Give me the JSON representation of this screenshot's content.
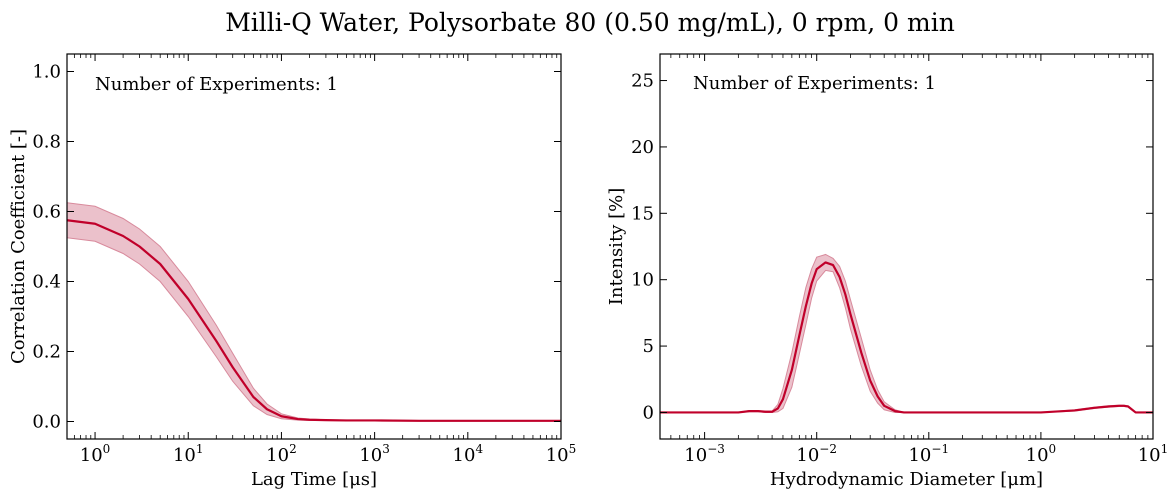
{
  "figure": {
    "title": "Milli-Q Water, Polysorbate 80 (0.50 mg/mL), 0 rpm, 0 min"
  },
  "colors": {
    "line": "#c0002a",
    "band": "#e8b6c2",
    "band_edge": "#d88a9c"
  },
  "chart_data": [
    {
      "type": "line",
      "xlabel": "Lag Time [μs]",
      "ylabel": "Correlation Coefficient [-]",
      "annotation": "Number of Experiments: 1",
      "xscale": "log",
      "xlim": [
        0.5,
        100000
      ],
      "ylim": [
        -0.05,
        1.05
      ],
      "xticks": [
        {
          "value": 1,
          "label": "10^0"
        },
        {
          "value": 10,
          "label": "10^1"
        },
        {
          "value": 100,
          "label": "10^2"
        },
        {
          "value": 1000,
          "label": "10^3"
        },
        {
          "value": 10000,
          "label": "10^4"
        },
        {
          "value": 100000,
          "label": "10^5"
        }
      ],
      "yticks": [
        {
          "value": 0.0,
          "label": "0.0"
        },
        {
          "value": 0.2,
          "label": "0.2"
        },
        {
          "value": 0.4,
          "label": "0.4"
        },
        {
          "value": 0.6,
          "label": "0.6"
        },
        {
          "value": 0.8,
          "label": "0.8"
        },
        {
          "value": 1.0,
          "label": "1.0"
        }
      ],
      "x": [
        0.5,
        1,
        2,
        3,
        5,
        10,
        20,
        30,
        50,
        70,
        100,
        150,
        200,
        300,
        500,
        1000,
        3000,
        10000,
        30000,
        100000
      ],
      "y": [
        0.575,
        0.565,
        0.53,
        0.5,
        0.45,
        0.35,
        0.23,
        0.155,
        0.07,
        0.035,
        0.015,
        0.007,
        0.005,
        0.004,
        0.003,
        0.003,
        0.002,
        0.002,
        0.002,
        0.002
      ],
      "y_upper": [
        0.625,
        0.615,
        0.58,
        0.55,
        0.5,
        0.4,
        0.275,
        0.195,
        0.095,
        0.05,
        0.022,
        0.01,
        0.007,
        0.005,
        0.004,
        0.004,
        0.003,
        0.003,
        0.003,
        0.003
      ],
      "y_lower": [
        0.525,
        0.515,
        0.48,
        0.45,
        0.4,
        0.3,
        0.185,
        0.115,
        0.045,
        0.02,
        0.008,
        0.004,
        0.003,
        0.003,
        0.002,
        0.002,
        0.001,
        0.001,
        0.001,
        0.001
      ]
    },
    {
      "type": "line",
      "xlabel": "Hydrodynamic Diameter [μm]",
      "ylabel": "Intensity [%]",
      "annotation": "Number of Experiments: 1",
      "xscale": "log",
      "xlim": [
        0.0004,
        10
      ],
      "ylim": [
        -2,
        27
      ],
      "xticks": [
        {
          "value": 0.001,
          "label": "10^−3"
        },
        {
          "value": 0.01,
          "label": "10^−2"
        },
        {
          "value": 0.1,
          "label": "10^−1"
        },
        {
          "value": 1,
          "label": "10^0"
        },
        {
          "value": 10,
          "label": "10^1"
        }
      ],
      "yticks": [
        {
          "value": 0,
          "label": "0"
        },
        {
          "value": 5,
          "label": "5"
        },
        {
          "value": 10,
          "label": "10"
        },
        {
          "value": 15,
          "label": "15"
        },
        {
          "value": 20,
          "label": "20"
        },
        {
          "value": 25,
          "label": "25"
        }
      ],
      "x": [
        0.0004,
        0.002,
        0.0025,
        0.003,
        0.0035,
        0.004,
        0.0045,
        0.005,
        0.006,
        0.007,
        0.008,
        0.009,
        0.01,
        0.012,
        0.014,
        0.016,
        0.018,
        0.02,
        0.025,
        0.03,
        0.035,
        0.04,
        0.05,
        0.06,
        0.1,
        1,
        2,
        3,
        4,
        5,
        5.5,
        6,
        7,
        10
      ],
      "y": [
        0,
        0,
        0.1,
        0.1,
        0.05,
        0.05,
        0.3,
        1.0,
        3.2,
        5.8,
        8.0,
        9.7,
        10.8,
        11.3,
        11.1,
        10.2,
        8.9,
        7.4,
        4.5,
        2.4,
        1.2,
        0.5,
        0.1,
        0,
        0,
        0,
        0.15,
        0.35,
        0.45,
        0.5,
        0.5,
        0.45,
        0,
        0
      ],
      "y_upper": [
        0,
        0,
        0.15,
        0.15,
        0.1,
        0.1,
        0.6,
        1.8,
        4.5,
        7.2,
        9.4,
        10.8,
        11.7,
        11.9,
        11.6,
        11.0,
        9.9,
        8.5,
        5.6,
        3.2,
        1.7,
        0.8,
        0.2,
        0,
        0,
        0,
        0.2,
        0.4,
        0.5,
        0.55,
        0.55,
        0.5,
        0,
        0
      ],
      "y_lower": [
        0,
        0,
        0.05,
        0.05,
        0.0,
        0.0,
        0.05,
        0.3,
        1.9,
        4.4,
        6.6,
        8.6,
        9.9,
        10.7,
        10.6,
        9.4,
        7.9,
        6.3,
        3.5,
        1.6,
        0.7,
        0.2,
        0.0,
        0,
        0,
        0,
        0.1,
        0.3,
        0.4,
        0.45,
        0.45,
        0.4,
        0,
        0
      ]
    }
  ]
}
